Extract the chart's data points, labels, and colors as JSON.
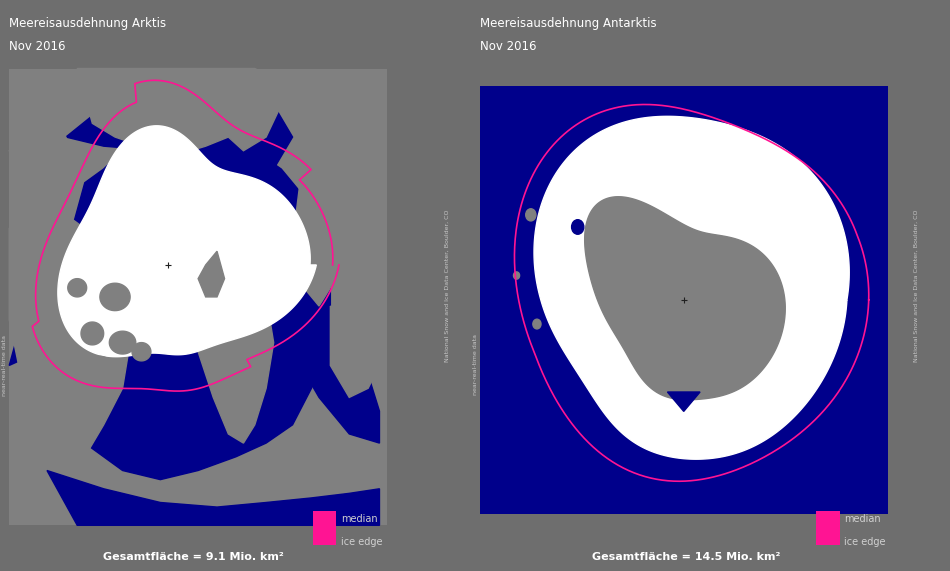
{
  "bg_color": "#6e6e6e",
  "map_bg": "#00008b",
  "land_color": "#808080",
  "ice_color": "#ffffff",
  "median_line_color": "#ff1493",
  "title1": "Meereisausdehnung Arktis",
  "date1": "Nov 2016",
  "title2": "Meereisausdehnung Antarktis",
  "date2": "Nov 2016",
  "label1": "Gesamtfläche = 9.1 Mio. km²",
  "label2": "Gesamtfläche = 14.5 Mio. km²",
  "legend_label1": "median",
  "legend_label2": "ice edge",
  "watermark": "National Snow and Ice Data Center, Boulder, CO",
  "watermark2": "near-real-time data",
  "text_color": "#d0d0d0",
  "title_color": "#ffffff",
  "label_color": "#ffffff",
  "figsize": [
    9.5,
    5.71
  ],
  "dpi": 100
}
